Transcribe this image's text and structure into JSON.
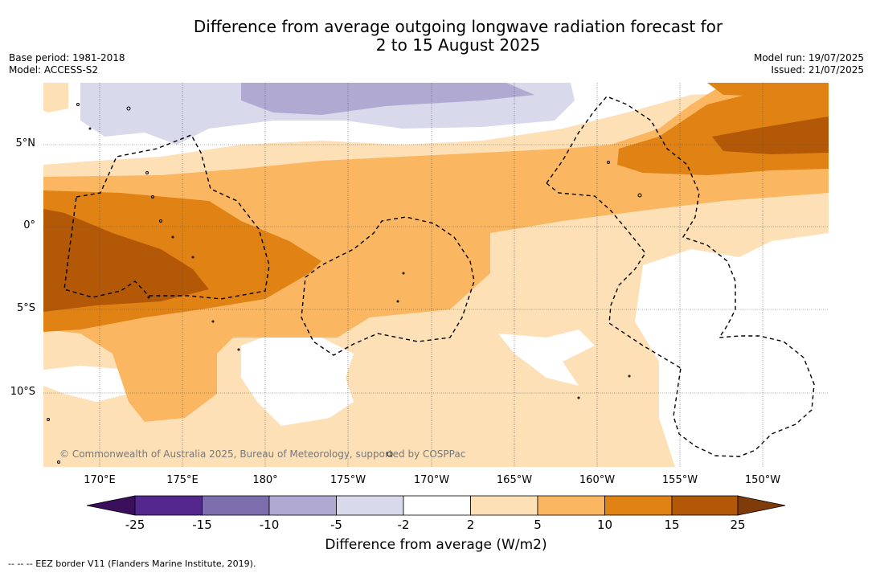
{
  "title_line1": "Difference from average outgoing longwave radiation forecast for",
  "title_line2": "2 to 15 August 2025",
  "base_period": "Base period: 1981-2018",
  "model": "Model: ACCESS-S2",
  "model_run": "Model run: 19/07/2025",
  "issued": "Issued: 21/07/2025",
  "lat_labels": [
    "5°N",
    "0°",
    "5°S",
    "10°S"
  ],
  "lon_labels": [
    "170°E",
    "175°E",
    "180°",
    "175°W",
    "170°W",
    "165°W",
    "160°W",
    "155°W",
    "150°W"
  ],
  "copyright": "© Commonwealth of Australia 2025, Bureau of Meteorology, supported by COSPPac",
  "colorbar": {
    "ticks": [
      "-25",
      "-15",
      "-10",
      "-5",
      "-2",
      "2",
      "5",
      "10",
      "15",
      "25"
    ],
    "colors": [
      "#3b0f5c",
      "#54278f",
      "#7d6fae",
      "#b0aad3",
      "#d9d9ec",
      "#ffffff",
      "#fee0b6",
      "#fbb661",
      "#e08214",
      "#b35806",
      "#7f3b08"
    ],
    "label": "Difference from average (W/m2)"
  },
  "footnote": "--  --  -- EEZ border V11 (Flanders Marine Institute, 2019)."
}
